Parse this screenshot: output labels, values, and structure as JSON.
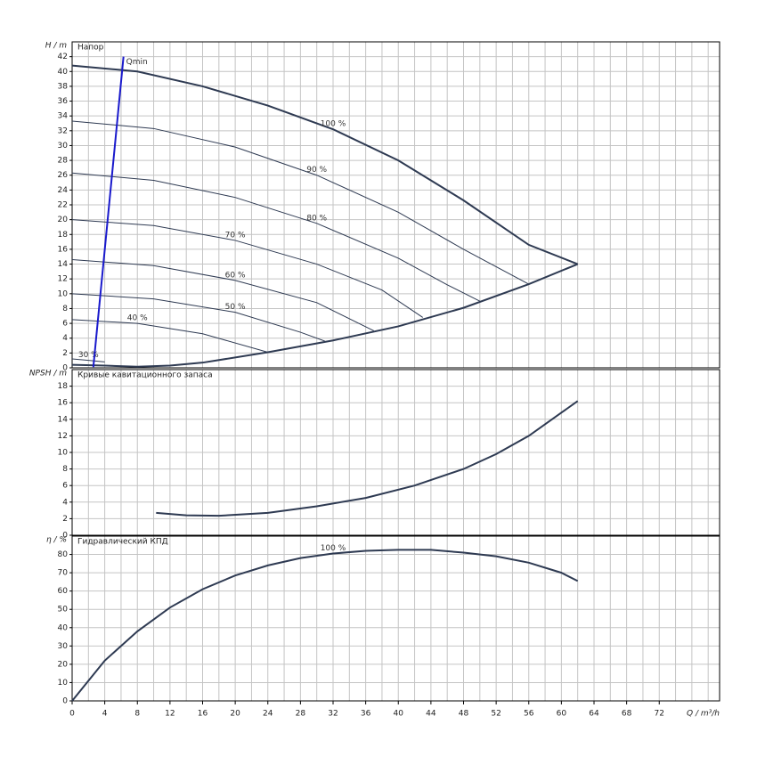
{
  "chart_data": [
    {
      "type": "line",
      "title": "Напор",
      "ylabel": "H / m",
      "ylim": [
        0,
        44
      ],
      "yticks": [
        0,
        2,
        4,
        6,
        8,
        10,
        12,
        14,
        16,
        18,
        20,
        22,
        24,
        26,
        28,
        30,
        32,
        34,
        36,
        38,
        40,
        42
      ],
      "grid": true,
      "series": [
        {
          "name": "100 %",
          "color": "#2e3a52",
          "line_width": 2,
          "x": [
            0,
            8,
            16,
            24,
            32,
            40,
            48,
            56,
            62
          ],
          "values": [
            40.8,
            40,
            38,
            35.4,
            32.2,
            28,
            22.6,
            16.6,
            14
          ]
        },
        {
          "color": "#2e3a52",
          "line_width": 2,
          "x": [
            0,
            4,
            8,
            12,
            16,
            24,
            32,
            40,
            48,
            56,
            62
          ],
          "values": [
            0.4,
            0.3,
            0.15,
            0.3,
            0.7,
            2.1,
            3.7,
            5.6,
            8.1,
            11.3,
            14
          ]
        },
        {
          "name": "90 %",
          "color": "#2e3a52",
          "line_width": 1,
          "x": [
            0,
            10,
            20,
            30,
            40,
            48,
            56
          ],
          "values": [
            33.3,
            32.3,
            29.8,
            26,
            21,
            16,
            11.3
          ]
        },
        {
          "name": "80 %",
          "color": "#2e3a52",
          "line_width": 1,
          "x": [
            0,
            10,
            20,
            30,
            40,
            46,
            50
          ],
          "values": [
            26.3,
            25.3,
            23,
            19.5,
            14.8,
            11.2,
            9
          ]
        },
        {
          "name": "70 %",
          "color": "#2e3a52",
          "line_width": 1,
          "x": [
            0,
            10,
            20,
            30,
            38,
            43
          ],
          "values": [
            20,
            19.2,
            17.2,
            14,
            10.5,
            6.8
          ]
        },
        {
          "name": "60 %",
          "color": "#2e3a52",
          "line_width": 1,
          "x": [
            0,
            10,
            20,
            30,
            37
          ],
          "values": [
            14.6,
            13.8,
            11.8,
            8.8,
            5
          ]
        },
        {
          "name": "50 %",
          "color": "#2e3a52",
          "line_width": 1,
          "x": [
            0,
            10,
            20,
            28,
            31
          ],
          "values": [
            10,
            9.3,
            7.5,
            4.8,
            3.6
          ]
        },
        {
          "name": "40 %",
          "color": "#2e3a52",
          "line_width": 1,
          "x": [
            0,
            8,
            16,
            24
          ],
          "values": [
            6.5,
            6,
            4.6,
            2.1
          ]
        },
        {
          "name": "30 %",
          "color": "#2e3a52",
          "line_width": 1,
          "x": [
            0,
            2,
            4
          ],
          "values": [
            1.2,
            1.0,
            0.8
          ]
        },
        {
          "name": "Qmin",
          "color": "#1a1acc",
          "line_width": 2,
          "x": [
            2.6,
            6.3
          ],
          "values": [
            0.1,
            42
          ]
        }
      ]
    },
    {
      "type": "line",
      "title": "Кривые кавитационного запаса",
      "ylabel": "NPSH / m",
      "ylim": [
        0,
        20
      ],
      "yticks": [
        0,
        2,
        4,
        6,
        8,
        10,
        12,
        14,
        16,
        18
      ],
      "grid": true,
      "series": [
        {
          "color": "#2e3a52",
          "line_width": 2,
          "x": [
            10.3,
            14,
            18,
            24,
            30,
            36,
            42,
            48,
            52,
            56,
            60,
            62
          ],
          "values": [
            2.7,
            2.4,
            2.35,
            2.7,
            3.5,
            4.5,
            6,
            8,
            9.8,
            12,
            14.8,
            16.2
          ]
        }
      ]
    },
    {
      "type": "line",
      "title": "Гидравлический КПД",
      "ylabel": "η / %",
      "ylim": [
        0,
        90
      ],
      "yticks": [
        0,
        10,
        20,
        30,
        40,
        50,
        60,
        70,
        80
      ],
      "grid": true,
      "xlabel": "Q / m³/h",
      "xlim": [
        0,
        79.4
      ],
      "xticks": [
        0,
        4,
        8,
        12,
        16,
        20,
        24,
        28,
        32,
        36,
        40,
        44,
        48,
        52,
        56,
        60,
        64,
        68,
        72
      ],
      "xminorticks": [
        2,
        6,
        10,
        14,
        18,
        22,
        26,
        30,
        34,
        38,
        42,
        46,
        50,
        54,
        58,
        62,
        66,
        70,
        74,
        76,
        78
      ],
      "series": [
        {
          "name": "100 %",
          "color": "#2e3a52",
          "line_width": 2,
          "x": [
            0,
            4,
            8,
            12,
            16,
            20,
            24,
            28,
            32,
            36,
            40,
            44,
            48,
            52,
            56,
            60,
            62
          ],
          "values": [
            0,
            22,
            38,
            51,
            61,
            68.5,
            74,
            78,
            80.5,
            82,
            82.5,
            82.5,
            81,
            79,
            75.5,
            70,
            65.5
          ]
        }
      ]
    }
  ]
}
